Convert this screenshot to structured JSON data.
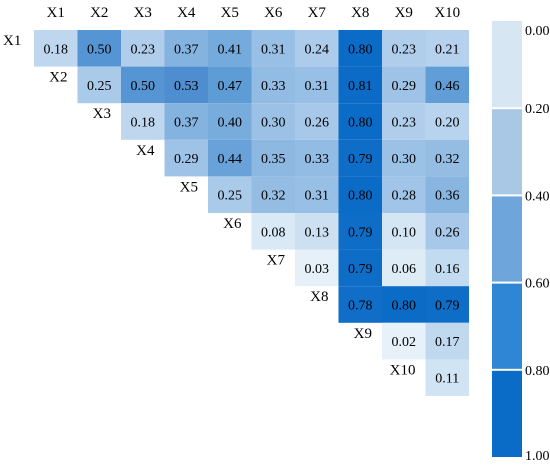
{
  "chart_data": {
    "type": "heatmap",
    "title": "",
    "xlabel": "",
    "ylabel": "",
    "col_labels": [
      "X1",
      "X2",
      "X3",
      "X4",
      "X5",
      "X6",
      "X7",
      "X8",
      "X9",
      "X10"
    ],
    "row_labels": [
      "X1",
      "X2",
      "X3",
      "X4",
      "X5",
      "X6",
      "X7",
      "X8",
      "X9",
      "X10"
    ],
    "layout": "upper-triangle",
    "values": [
      [
        0.18,
        0.5,
        0.23,
        0.37,
        0.41,
        0.31,
        0.24,
        0.8,
        0.23,
        0.21
      ],
      [
        null,
        0.25,
        0.5,
        0.53,
        0.47,
        0.33,
        0.31,
        0.81,
        0.29,
        0.46
      ],
      [
        null,
        null,
        0.18,
        0.37,
        0.4,
        0.3,
        0.26,
        0.8,
        0.23,
        0.2
      ],
      [
        null,
        null,
        null,
        0.29,
        0.44,
        0.35,
        0.33,
        0.79,
        0.3,
        0.32
      ],
      [
        null,
        null,
        null,
        null,
        0.25,
        0.32,
        0.31,
        0.8,
        0.28,
        0.36
      ],
      [
        null,
        null,
        null,
        null,
        null,
        0.08,
        0.13,
        0.79,
        0.1,
        0.26
      ],
      [
        null,
        null,
        null,
        null,
        null,
        null,
        0.03,
        0.79,
        0.06,
        0.16
      ],
      [
        null,
        null,
        null,
        null,
        null,
        null,
        null,
        0.78,
        0.8,
        0.79
      ],
      [
        null,
        null,
        null,
        null,
        null,
        null,
        null,
        null,
        0.02,
        0.17
      ],
      [
        null,
        null,
        null,
        null,
        null,
        null,
        null,
        null,
        null,
        0.11
      ]
    ],
    "value_range": [
      0,
      1
    ],
    "colorbar": {
      "ticks": [
        "0.00",
        "0.20",
        "0.40",
        "0.60",
        "0.80",
        "1.00"
      ],
      "bins": [
        {
          "from": 0.0,
          "to": 0.2,
          "color": "#d6e6f2"
        },
        {
          "from": 0.2,
          "to": 0.4,
          "color": "#a9c8e6"
        },
        {
          "from": 0.4,
          "to": 0.6,
          "color": "#6ea6dc"
        },
        {
          "from": 0.6,
          "to": 0.8,
          "color": "#2f86d4"
        },
        {
          "from": 0.8,
          "to": 1.0,
          "color": "#0b6cc7"
        }
      ],
      "placement": "right"
    },
    "grid": false
  }
}
